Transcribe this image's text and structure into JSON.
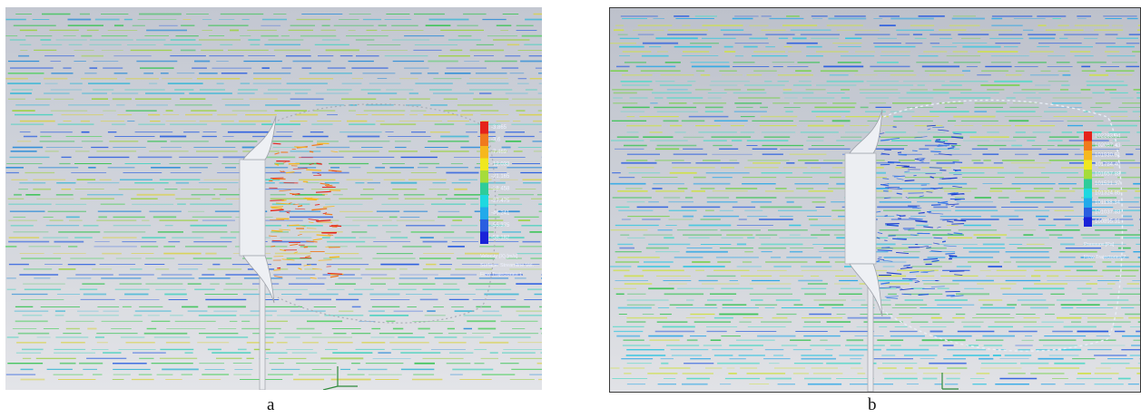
{
  "panels": [
    {
      "caption": "a",
      "legend": {
        "colors": [
          "#e5231b",
          "#f07a1e",
          "#f6b81e",
          "#f0e81e",
          "#a6dc3a",
          "#2ecc9a",
          "#1ed8e0",
          "#22aaea",
          "#2a5ee0",
          "#1a22d8"
        ],
        "labels": [
          "-3.865",
          "-3.6",
          "-7.469",
          "-12.033",
          "-21.165",
          "-28.458",
          "-37.475",
          "-46.241",
          "-55.375",
          "-58.182"
        ],
        "title": "Velocity (X) [m/s]",
        "subtitle": "Surface: Streamline Vel.",
        "name": "Flow Trajectories 1"
      }
    },
    {
      "caption": "b",
      "legend": {
        "colors": [
          "#e5231b",
          "#f07a1e",
          "#f6b81e",
          "#f0e81e",
          "#a6dc3a",
          "#2ecc9a",
          "#1ed8e0",
          "#22aaea",
          "#2a5ee0",
          "#1a22d8"
        ],
        "labels": [
          "102283.94",
          "102067.43",
          "101930.91",
          "101784.40",
          "101657.88",
          "101521.37",
          "101324.85",
          "101138.34",
          "101037.83",
          "100895.31"
        ],
        "title": "Pressure [Pa]",
        "name": "Flow Trajectories 2"
      }
    }
  ],
  "streak_palette": {
    "panel_a": [
      "#3fc45a",
      "#5bd06a",
      "#43b8d6",
      "#2f8ed8",
      "#2a5ee0",
      "#9fd14a",
      "#d9d24a",
      "#4fd2c0"
    ],
    "panel_b": [
      "#3fc45a",
      "#79d14f",
      "#34c6e0",
      "#2da8e6",
      "#2a5ee0",
      "#cfe04a",
      "#58d8c8"
    ],
    "wake_a": [
      "#e5231b",
      "#f07a1e",
      "#f6b81e"
    ],
    "wake_b": [
      "#2a5ee0",
      "#3a7ae8",
      "#1e3ecf"
    ]
  }
}
